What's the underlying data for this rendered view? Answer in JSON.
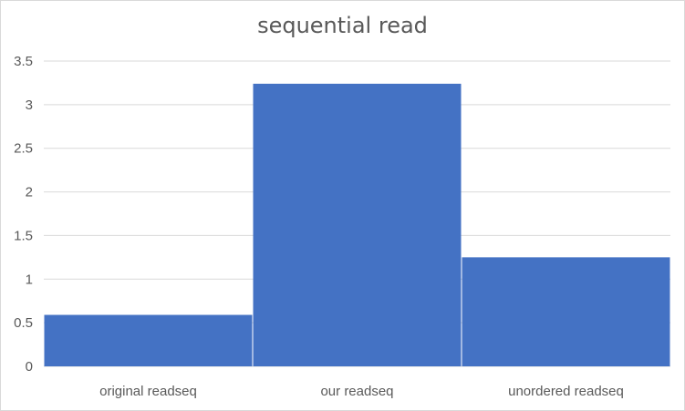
{
  "chart_data": {
    "type": "bar",
    "title": "sequential read",
    "categories": [
      "original readseq",
      "our readseq",
      "unordered readseq"
    ],
    "values": [
      0.59,
      3.24,
      1.25
    ],
    "xlabel": "",
    "ylabel": "",
    "ylim": [
      0,
      3.5
    ],
    "yticks": [
      "0",
      "0.5",
      "1",
      "1.5",
      "2",
      "2.5",
      "3",
      "3.5"
    ],
    "grid": true,
    "legend": "none",
    "bar_color": "#4472C4",
    "grid_color": "#d9d9d9"
  }
}
